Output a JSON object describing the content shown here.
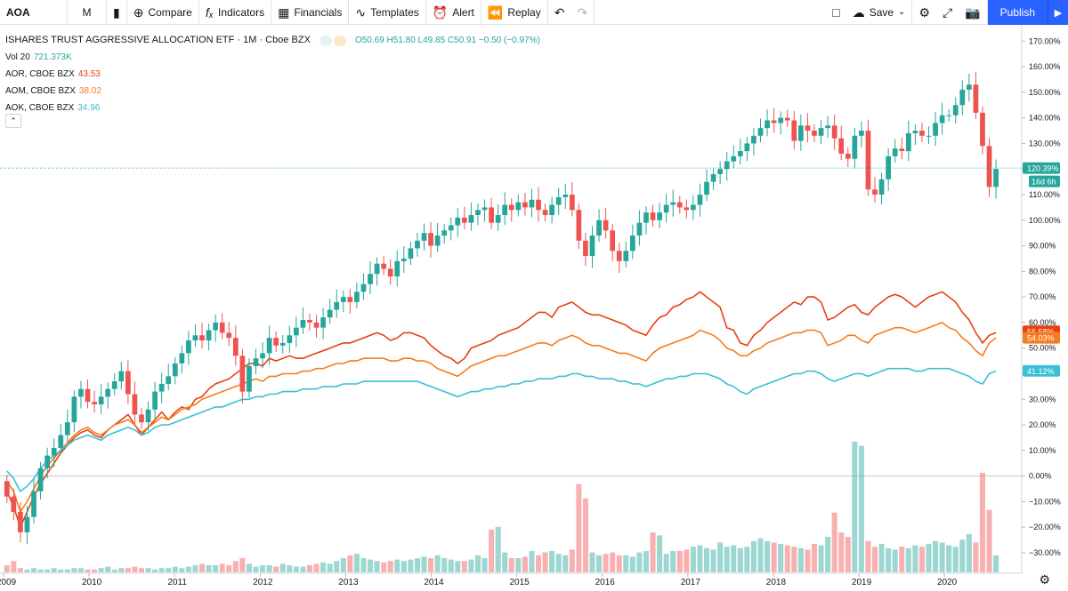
{
  "toolbar": {
    "symbol": "AOA",
    "interval": "M",
    "compare": "Compare",
    "indicators": "Indicators",
    "financials": "Financials",
    "templates": "Templates",
    "alert": "Alert",
    "replay": "Replay",
    "save": "Save",
    "publish": "Publish"
  },
  "legend": {
    "title": "ISHARES TRUST AGGRESSIVE ALLOCATION ETF · 1M · Cboe BZX",
    "ohlc": "O50.69 H51.80 L49.85 C50.91 −0.50 (−0.97%)",
    "vol_label": "Vol 20",
    "vol_value": "721.373K",
    "aor_label": "AOR, CBOE BZX",
    "aor_value": "43.53",
    "aom_label": "AOM, CBOE BZX",
    "aom_value": "38.02",
    "aok_label": "AOK, CBOE BZX",
    "aok_value": "34.96"
  },
  "colors": {
    "up": "#26a69a",
    "down": "#ef5350",
    "vol_up": "#26a69a",
    "vol_down": "#ef5350",
    "aor": "#e8410f",
    "aom": "#f57c1f",
    "aok": "#3bbfd6",
    "last_line": "#26a69a"
  },
  "chart_data": {
    "type": "candlestick",
    "y_unit": "percent change",
    "ylim": [
      -38,
      176
    ],
    "y_ticks": [
      -30,
      -20,
      -10,
      0,
      10,
      20,
      30,
      40,
      50,
      60,
      70,
      80,
      90,
      100,
      110,
      120,
      130,
      140,
      150,
      160,
      170
    ],
    "x_ticks": [
      "2009",
      "2010",
      "2011",
      "2012",
      "2013",
      "2014",
      "2015",
      "2016",
      "2017",
      "2018",
      "2019",
      "2020"
    ],
    "x_start": 2009.0,
    "x_end": 2020.8,
    "tags": {
      "aoa_last": "120.39%",
      "countdown": "16d 6h",
      "aor_last": "56.58%",
      "aom_last": "54.03%",
      "aok_last": "41.12%"
    },
    "last_value": 120.39,
    "candle_closes": [
      -8,
      -14,
      -22,
      -16,
      -6,
      3,
      8,
      11,
      16,
      21,
      31,
      34,
      29,
      28,
      31,
      34,
      37,
      41,
      32,
      24,
      21,
      26,
      33,
      36,
      39,
      44,
      48,
      53,
      55,
      53,
      57,
      60,
      56,
      54,
      47,
      33,
      43,
      46,
      48,
      54,
      51,
      52,
      55,
      58,
      61,
      60,
      58,
      62,
      65,
      68,
      70,
      68,
      72,
      75,
      79,
      83,
      81,
      78,
      84,
      85,
      89,
      92,
      95,
      90,
      94,
      96,
      98,
      101,
      99,
      102,
      104,
      105,
      99,
      102,
      106,
      104,
      107,
      105,
      108,
      104,
      102,
      106,
      109,
      110,
      104,
      92,
      86,
      94,
      100,
      96,
      88,
      84,
      88,
      94,
      99,
      103,
      100,
      103,
      106,
      107,
      105,
      104,
      106,
      110,
      115,
      118,
      120,
      123,
      125,
      127,
      130,
      133,
      136,
      139,
      138,
      140,
      139,
      131,
      137,
      135,
      133,
      136,
      137,
      132,
      126,
      124,
      133,
      135,
      112,
      110,
      116,
      125,
      128,
      127,
      134,
      135,
      133,
      133,
      138,
      141,
      141,
      145,
      151,
      153,
      142,
      129,
      113,
      120
    ],
    "series": [
      {
        "name": "AOR",
        "color": "#e8410f",
        "values": [
          -6,
          -12,
          -20,
          -14,
          -8,
          -3,
          1,
          5,
          9,
          12,
          15,
          17,
          18,
          16,
          15,
          18,
          20,
          22,
          24,
          20,
          16,
          19,
          22,
          25,
          22,
          25,
          27,
          26,
          30,
          31,
          34,
          36,
          37,
          38,
          40,
          42,
          44,
          44,
          43,
          46,
          45,
          46,
          47,
          46,
          46,
          47,
          48,
          49,
          50,
          51,
          52,
          52,
          53,
          54,
          55,
          56,
          55,
          53,
          54,
          56,
          56,
          55,
          54,
          51,
          49,
          47,
          46,
          44,
          46,
          50,
          51,
          52,
          53,
          55,
          56,
          57,
          58,
          60,
          62,
          64,
          64,
          62,
          66,
          67,
          68,
          66,
          64,
          63,
          63,
          62,
          61,
          60,
          59,
          57,
          56,
          55,
          59,
          62,
          63,
          66,
          67,
          69,
          70,
          72,
          70,
          68,
          66,
          58,
          57,
          52,
          51,
          55,
          57,
          60,
          62,
          64,
          66,
          68,
          67,
          70,
          70,
          68,
          61,
          62,
          64,
          66,
          67,
          64,
          63,
          66,
          68,
          70,
          71,
          70,
          68,
          66,
          68,
          70,
          71,
          72,
          70,
          68,
          64,
          61,
          56,
          52,
          55,
          56
        ]
      },
      {
        "name": "AOM",
        "color": "#f57c1f",
        "values": [
          -2,
          -6,
          -14,
          -10,
          -5,
          0,
          4,
          7,
          10,
          13,
          16,
          18,
          19,
          17,
          16,
          18,
          20,
          21,
          22,
          20,
          17,
          19,
          21,
          23,
          22,
          24,
          26,
          27,
          28,
          30,
          31,
          32,
          33,
          34,
          35,
          36,
          37,
          38,
          37,
          39,
          39,
          40,
          40,
          40,
          41,
          41,
          42,
          42,
          43,
          44,
          44,
          45,
          45,
          46,
          46,
          46,
          46,
          45,
          45,
          46,
          46,
          45,
          45,
          44,
          42,
          41,
          40,
          39,
          41,
          43,
          44,
          45,
          46,
          47,
          47,
          48,
          49,
          50,
          51,
          52,
          52,
          51,
          53,
          54,
          55,
          54,
          52,
          51,
          51,
          50,
          49,
          48,
          48,
          47,
          46,
          45,
          48,
          50,
          51,
          52,
          53,
          54,
          55,
          57,
          56,
          55,
          53,
          50,
          49,
          47,
          47,
          49,
          50,
          52,
          53,
          54,
          55,
          56,
          56,
          57,
          57,
          56,
          51,
          52,
          53,
          55,
          55,
          53,
          52,
          55,
          56,
          57,
          58,
          58,
          57,
          56,
          57,
          58,
          59,
          60,
          58,
          57,
          54,
          52,
          49,
          47,
          52,
          54
        ]
      },
      {
        "name": "AOK",
        "color": "#3bbfd6",
        "values": [
          2,
          -1,
          -6,
          -4,
          -1,
          3,
          6,
          8,
          10,
          12,
          14,
          15,
          16,
          15,
          14,
          16,
          17,
          18,
          19,
          18,
          16,
          17,
          19,
          20,
          20,
          21,
          22,
          23,
          24,
          25,
          26,
          27,
          27,
          28,
          29,
          30,
          30,
          31,
          31,
          32,
          32,
          33,
          33,
          33,
          34,
          34,
          34,
          35,
          35,
          35,
          36,
          36,
          36,
          37,
          37,
          37,
          37,
          37,
          37,
          37,
          37,
          37,
          36,
          35,
          34,
          33,
          32,
          31,
          32,
          33,
          33,
          34,
          34,
          35,
          35,
          36,
          36,
          37,
          37,
          38,
          38,
          38,
          39,
          39,
          40,
          40,
          39,
          39,
          38,
          38,
          38,
          37,
          37,
          36,
          36,
          35,
          36,
          37,
          38,
          38,
          39,
          39,
          40,
          40,
          40,
          39,
          38,
          36,
          35,
          33,
          32,
          34,
          35,
          36,
          37,
          38,
          39,
          40,
          40,
          41,
          41,
          40,
          38,
          37,
          38,
          39,
          40,
          40,
          39,
          40,
          41,
          42,
          42,
          42,
          42,
          41,
          41,
          42,
          42,
          42,
          42,
          41,
          40,
          39,
          37,
          36,
          40,
          41
        ]
      }
    ],
    "volume_relative": [
      0.05,
      0.08,
      0.03,
      0.02,
      0.03,
      0.02,
      0.02,
      0.03,
      0.02,
      0.02,
      0.03,
      0.03,
      0.02,
      0.02,
      0.03,
      0.04,
      0.02,
      0.03,
      0.03,
      0.04,
      0.03,
      0.03,
      0.02,
      0.03,
      0.03,
      0.04,
      0.03,
      0.04,
      0.05,
      0.06,
      0.05,
      0.05,
      0.06,
      0.05,
      0.08,
      0.1,
      0.06,
      0.04,
      0.05,
      0.05,
      0.04,
      0.06,
      0.05,
      0.04,
      0.04,
      0.05,
      0.06,
      0.07,
      0.06,
      0.08,
      0.1,
      0.12,
      0.13,
      0.1,
      0.09,
      0.08,
      0.07,
      0.08,
      0.09,
      0.08,
      0.09,
      0.1,
      0.11,
      0.1,
      0.12,
      0.1,
      0.09,
      0.08,
      0.08,
      0.09,
      0.12,
      0.1,
      0.3,
      0.32,
      0.14,
      0.1,
      0.1,
      0.11,
      0.15,
      0.12,
      0.14,
      0.15,
      0.13,
      0.12,
      0.16,
      0.62,
      0.52,
      0.14,
      0.12,
      0.13,
      0.14,
      0.12,
      0.12,
      0.11,
      0.14,
      0.15,
      0.28,
      0.26,
      0.13,
      0.15,
      0.15,
      0.16,
      0.18,
      0.19,
      0.17,
      0.16,
      0.21,
      0.18,
      0.19,
      0.17,
      0.18,
      0.22,
      0.24,
      0.22,
      0.21,
      0.2,
      0.19,
      0.18,
      0.17,
      0.16,
      0.2,
      0.19,
      0.25,
      0.42,
      0.28,
      0.25,
      0.92,
      0.89,
      0.22,
      0.18,
      0.2,
      0.17,
      0.16,
      0.18,
      0.17,
      0.19,
      0.18,
      0.2,
      0.22,
      0.21,
      0.19,
      0.18,
      0.23,
      0.27,
      0.21,
      0.7,
      0.44,
      0.12
    ]
  }
}
